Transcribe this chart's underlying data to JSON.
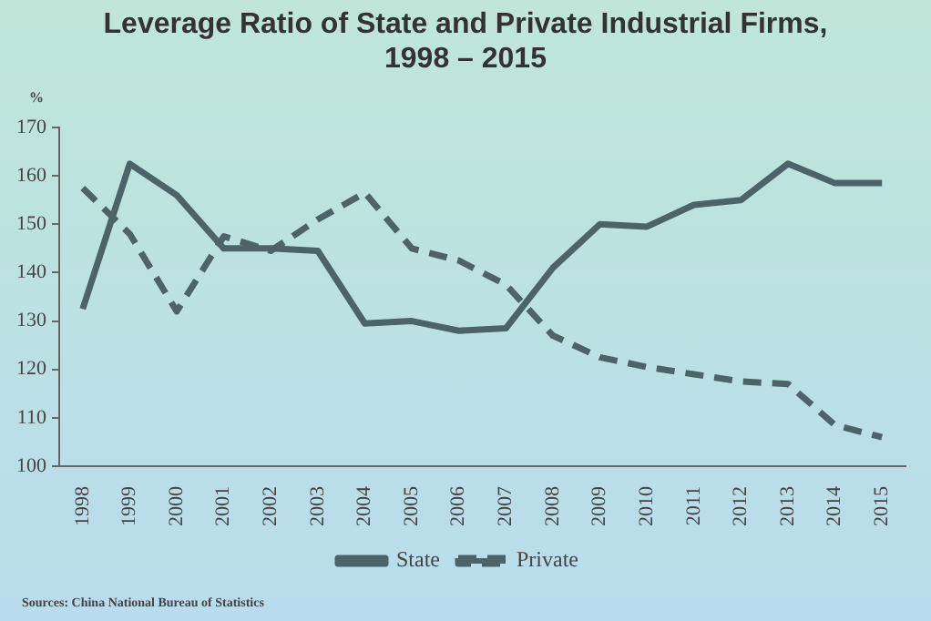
{
  "chart_data": {
    "type": "line",
    "title": "Leverage Ratio of State and Private Industrial Firms, 1998 – 2015",
    "ylabel": "%",
    "categories": [
      "1998",
      "1999",
      "2000",
      "2001",
      "2002",
      "2003",
      "2004",
      "2005",
      "2006",
      "2007",
      "2008",
      "2009",
      "2010",
      "2011",
      "2012",
      "2013",
      "2014",
      "2015"
    ],
    "series": [
      {
        "name": "State",
        "color": "#4a6468",
        "line_style": "solid",
        "values": [
          132.5,
          162.5,
          156,
          145,
          145,
          144.5,
          129.5,
          130,
          128,
          128.5,
          141,
          150,
          149.5,
          154,
          155,
          162.5,
          158.5,
          158.5
        ]
      },
      {
        "name": "Private",
        "color": "#4a6468",
        "line_style": "dashed",
        "values": [
          157.5,
          148,
          132,
          147.5,
          144.5,
          151,
          156.5,
          145,
          142.5,
          137.5,
          127,
          122.5,
          120.5,
          119,
          117.5,
          117,
          108.5,
          106
        ]
      }
    ],
    "ylim": [
      100,
      170
    ],
    "yticks": [
      100,
      110,
      120,
      130,
      140,
      150,
      160,
      170
    ],
    "grid": false,
    "legend": "bottom",
    "marker": "none",
    "annotations": [
      "Sources: China National Bureau of Statistics"
    ]
  }
}
